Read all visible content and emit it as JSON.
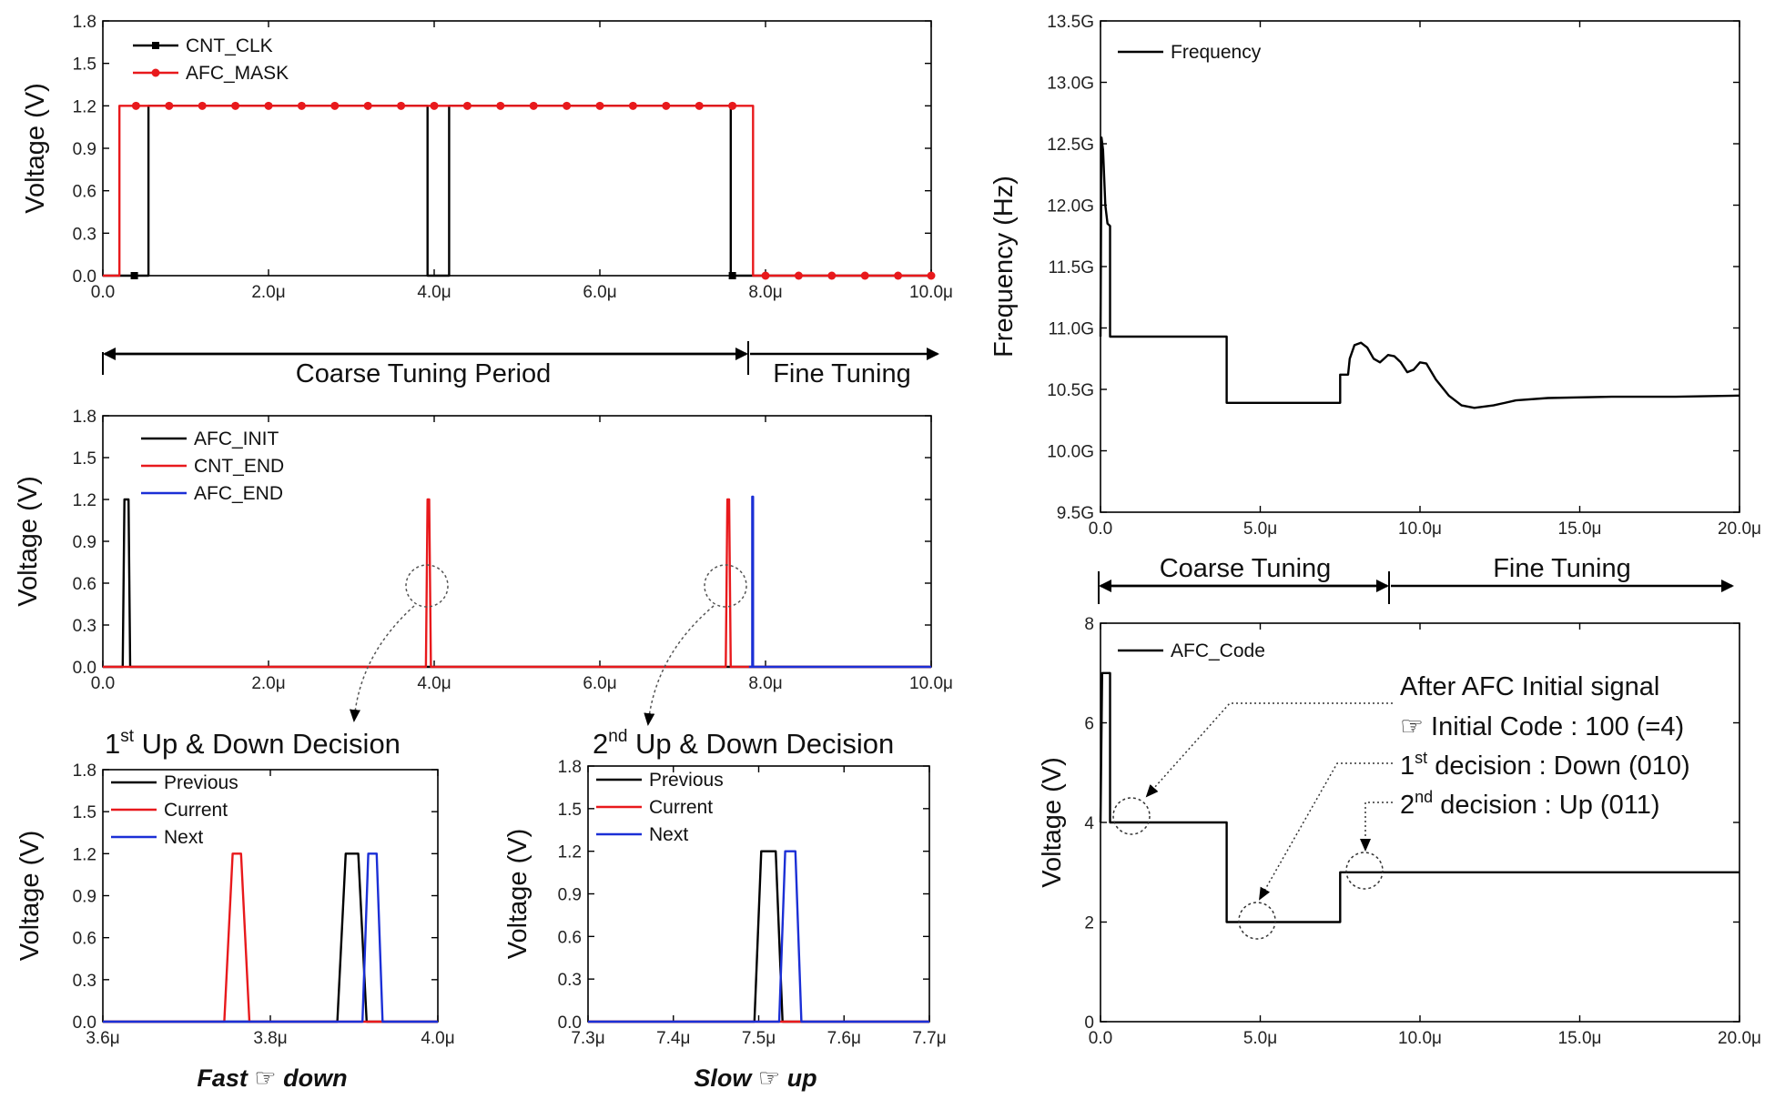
{
  "colors": {
    "black": "#000000",
    "red": "#e8191c",
    "blue": "#1b2fd6"
  },
  "chart_data": [
    {
      "id": "p1",
      "type": "line",
      "xlabel": "",
      "ylabel": "Voltage (V)",
      "xlim": [
        0,
        10
      ],
      "ylim": [
        0,
        1.8
      ],
      "xticks": [
        0,
        2,
        4,
        6,
        8,
        10
      ],
      "xtick_labels": [
        "0.0",
        "2.0μ",
        "4.0μ",
        "6.0μ",
        "8.0μ",
        "10.0μ"
      ],
      "yticks": [
        0,
        0.3,
        0.6,
        0.9,
        1.2,
        1.5,
        1.8
      ],
      "ytick_labels": [
        "0.0",
        "0.3",
        "0.6",
        "0.9",
        "1.2",
        "1.5",
        "1.8"
      ],
      "series": [
        {
          "name": "CNT_CLK",
          "color": "#000000",
          "marker": "square",
          "marker_x": [
            0.38,
            7.6
          ],
          "points": [
            [
              0,
              0
            ],
            [
              0.55,
              0
            ],
            [
              0.55,
              1.2
            ],
            [
              3.92,
              1.2
            ],
            [
              3.92,
              0
            ],
            [
              4.18,
              0
            ],
            [
              4.18,
              1.2
            ],
            [
              7.58,
              1.2
            ],
            [
              7.58,
              0
            ],
            [
              10,
              0
            ]
          ]
        },
        {
          "name": "AFC_MASK",
          "color": "#e8191c",
          "marker": "circle",
          "marker_x": [
            0.4,
            0.8,
            1.2,
            1.6,
            2.0,
            2.4,
            2.8,
            3.2,
            3.6,
            4.0,
            4.4,
            4.8,
            5.2,
            5.6,
            6.0,
            6.4,
            6.8,
            7.2,
            7.6,
            8.0,
            8.4,
            8.8,
            9.2,
            9.6,
            10.0
          ],
          "points": [
            [
              0,
              0
            ],
            [
              0.2,
              0
            ],
            [
              0.2,
              1.2
            ],
            [
              7.85,
              1.2
            ],
            [
              7.85,
              0
            ],
            [
              10,
              0
            ]
          ]
        }
      ]
    },
    {
      "id": "p2",
      "type": "line",
      "xlabel": "",
      "ylabel": "Voltage (V)",
      "xlim": [
        0,
        10
      ],
      "ylim": [
        0,
        1.8
      ],
      "xticks": [
        0,
        2,
        4,
        6,
        8,
        10
      ],
      "xtick_labels": [
        "0.0",
        "2.0μ",
        "4.0μ",
        "6.0μ",
        "8.0μ",
        "10.0μ"
      ],
      "yticks": [
        0,
        0.3,
        0.6,
        0.9,
        1.2,
        1.5,
        1.8
      ],
      "ytick_labels": [
        "0.0",
        "0.3",
        "0.6",
        "0.9",
        "1.2",
        "1.5",
        "1.8"
      ],
      "series": [
        {
          "name": "AFC_INIT",
          "color": "#000000",
          "points": [
            [
              0,
              0
            ],
            [
              0.24,
              0
            ],
            [
              0.26,
              1.2
            ],
            [
              0.31,
              1.2
            ],
            [
              0.33,
              0
            ],
            [
              10,
              0
            ]
          ]
        },
        {
          "name": "CNT_END",
          "color": "#e8191c",
          "points": [
            [
              0,
              0
            ],
            [
              3.9,
              0
            ],
            [
              3.92,
              1.2
            ],
            [
              3.94,
              1.2
            ],
            [
              3.96,
              0
            ],
            [
              7.52,
              0
            ],
            [
              7.54,
              1.2
            ],
            [
              7.56,
              1.2
            ],
            [
              7.58,
              0
            ],
            [
              10,
              0
            ]
          ]
        },
        {
          "name": "AFC_END",
          "color": "#1b2fd6",
          "points": [
            [
              7.8,
              0
            ],
            [
              7.84,
              0
            ],
            [
              7.84,
              1.22
            ],
            [
              7.85,
              1.22
            ],
            [
              7.85,
              0
            ],
            [
              10,
              0
            ]
          ]
        }
      ]
    },
    {
      "id": "p3",
      "type": "line",
      "title_ord": "1",
      "title_sup": "st",
      "title_rest": " Up & Down Decision",
      "xlabel": "",
      "ylabel": "Voltage (V)",
      "xlim": [
        3.6,
        4.0
      ],
      "ylim": [
        0,
        1.8
      ],
      "xticks": [
        3.6,
        3.8,
        4.0
      ],
      "xtick_labels": [
        "3.6μ",
        "3.8μ",
        "4.0μ"
      ],
      "yticks": [
        0,
        0.3,
        0.6,
        0.9,
        1.2,
        1.5,
        1.8
      ],
      "ytick_labels": [
        "0.0",
        "0.3",
        "0.6",
        "0.9",
        "1.2",
        "1.5",
        "1.8"
      ],
      "series": [
        {
          "name": "Previous",
          "color": "#000000",
          "points": [
            [
              3.6,
              0
            ],
            [
              3.88,
              0
            ],
            [
              3.89,
              1.2
            ],
            [
              3.905,
              1.2
            ],
            [
              3.915,
              0
            ],
            [
              4.0,
              0
            ]
          ]
        },
        {
          "name": "Current",
          "color": "#e8191c",
          "points": [
            [
              3.6,
              0
            ],
            [
              3.745,
              0
            ],
            [
              3.755,
              1.2
            ],
            [
              3.765,
              1.2
            ],
            [
              3.775,
              0
            ],
            [
              4.0,
              0
            ]
          ]
        },
        {
          "name": "Next",
          "color": "#1b2fd6",
          "points": [
            [
              3.6,
              0
            ],
            [
              3.91,
              0
            ],
            [
              3.917,
              1.2
            ],
            [
              3.927,
              1.2
            ],
            [
              3.934,
              0
            ],
            [
              4.0,
              0
            ]
          ]
        }
      ]
    },
    {
      "id": "p4",
      "type": "line",
      "title_ord": "2",
      "title_sup": "nd",
      "title_rest": " Up & Down Decision",
      "xlabel": "",
      "ylabel": "Voltage (V)",
      "xlim": [
        7.3,
        7.7
      ],
      "ylim": [
        0,
        1.8
      ],
      "xticks": [
        7.3,
        7.4,
        7.5,
        7.6,
        7.7
      ],
      "xtick_labels": [
        "7.3μ",
        "7.4μ",
        "7.5μ",
        "7.6μ",
        "7.7μ"
      ],
      "yticks": [
        0,
        0.3,
        0.6,
        0.9,
        1.2,
        1.5,
        1.8
      ],
      "ytick_labels": [
        "0.0",
        "0.3",
        "0.6",
        "0.9",
        "1.2",
        "1.5",
        "1.8"
      ],
      "series": [
        {
          "name": "Previous",
          "color": "#000000",
          "points": [
            [
              7.3,
              0
            ],
            [
              7.495,
              0
            ],
            [
              7.503,
              1.2
            ],
            [
              7.52,
              1.2
            ],
            [
              7.528,
              0
            ],
            [
              7.7,
              0
            ]
          ]
        },
        {
          "name": "Current",
          "color": "#e8191c",
          "points": [
            [
              7.3,
              0
            ],
            [
              7.7,
              0
            ]
          ]
        },
        {
          "name": "Next",
          "color": "#1b2fd6",
          "points": [
            [
              7.3,
              0
            ],
            [
              7.524,
              0
            ],
            [
              7.531,
              1.2
            ],
            [
              7.543,
              1.2
            ],
            [
              7.55,
              0
            ],
            [
              7.7,
              0
            ]
          ]
        }
      ]
    },
    {
      "id": "p5",
      "type": "line",
      "xlabel": "",
      "ylabel": "Frequency (Hz)",
      "xlim": [
        0,
        20
      ],
      "ylim": [
        9.5,
        13.5
      ],
      "xticks": [
        0,
        5,
        10,
        15,
        20
      ],
      "xtick_labels": [
        "0.0",
        "5.0μ",
        "10.0μ",
        "15.0μ",
        "20.0μ"
      ],
      "yticks": [
        9.5,
        10.0,
        10.5,
        11.0,
        11.5,
        12.0,
        12.5,
        13.0,
        13.5
      ],
      "ytick_labels": [
        "9.5G",
        "10.0G",
        "10.5G",
        "11.0G",
        "11.5G",
        "12.0G",
        "12.5G",
        "13.0G",
        "13.5G"
      ],
      "series": [
        {
          "name": "Frequency",
          "color": "#000000",
          "points": [
            [
              0,
              10.93
            ],
            [
              0.03,
              12.55
            ],
            [
              0.08,
              12.45
            ],
            [
              0.15,
              12.0
            ],
            [
              0.22,
              11.85
            ],
            [
              0.3,
              11.83
            ],
            [
              0.3,
              10.93
            ],
            [
              3.95,
              10.93
            ],
            [
              3.95,
              10.39
            ],
            [
              7.5,
              10.39
            ],
            [
              7.5,
              10.62
            ],
            [
              7.75,
              10.62
            ],
            [
              7.8,
              10.75
            ],
            [
              7.95,
              10.86
            ],
            [
              8.15,
              10.88
            ],
            [
              8.35,
              10.84
            ],
            [
              8.55,
              10.75
            ],
            [
              8.75,
              10.72
            ],
            [
              9.0,
              10.78
            ],
            [
              9.2,
              10.77
            ],
            [
              9.4,
              10.72
            ],
            [
              9.6,
              10.64
            ],
            [
              9.8,
              10.66
            ],
            [
              10.0,
              10.72
            ],
            [
              10.2,
              10.71
            ],
            [
              10.5,
              10.58
            ],
            [
              10.9,
              10.45
            ],
            [
              11.3,
              10.37
            ],
            [
              11.7,
              10.35
            ],
            [
              12.3,
              10.37
            ],
            [
              13.0,
              10.41
            ],
            [
              14.0,
              10.43
            ],
            [
              16.0,
              10.44
            ],
            [
              18.0,
              10.44
            ],
            [
              20.0,
              10.45
            ]
          ]
        }
      ]
    },
    {
      "id": "p6",
      "type": "line",
      "xlabel": "",
      "ylabel": "Voltage (V)",
      "xlim": [
        0,
        20
      ],
      "ylim": [
        0,
        8
      ],
      "xticks": [
        0,
        5,
        10,
        15,
        20
      ],
      "xtick_labels": [
        "0.0",
        "5.0μ",
        "10.0μ",
        "15.0μ",
        "20.0μ"
      ],
      "yticks": [
        0,
        2,
        4,
        6,
        8
      ],
      "ytick_labels": [
        "0",
        "2",
        "4",
        "6",
        "8"
      ],
      "series": [
        {
          "name": "AFC_Code",
          "color": "#000000",
          "points": [
            [
              0,
              4
            ],
            [
              0.05,
              7
            ],
            [
              0.3,
              7
            ],
            [
              0.3,
              4
            ],
            [
              3.95,
              4
            ],
            [
              3.95,
              2
            ],
            [
              7.5,
              2
            ],
            [
              7.5,
              3
            ],
            [
              20,
              3
            ]
          ]
        }
      ]
    }
  ],
  "labels": {
    "coarse_tuning_period": "Coarse Tuning Period",
    "fine_tuning_left": "Fine Tuning",
    "coarse_tuning": "Coarse Tuning",
    "fine_tuning_right": "Fine Tuning",
    "caption_fast_a": "Fast ",
    "caption_fast_b": " down",
    "caption_slow_a": "Slow ",
    "caption_slow_b": " up",
    "hand_glyph": "☞",
    "ann_after": "After AFC Initial signal",
    "ann_initial": "☞ Initial Code : 100 (=4)",
    "ann_first_ord": "1",
    "ann_first_sup": "st",
    "ann_first_rest": " decision : Down (010)",
    "ann_second_ord": "2",
    "ann_second_sup": "nd",
    "ann_second_rest": " decision : Up (011)"
  }
}
